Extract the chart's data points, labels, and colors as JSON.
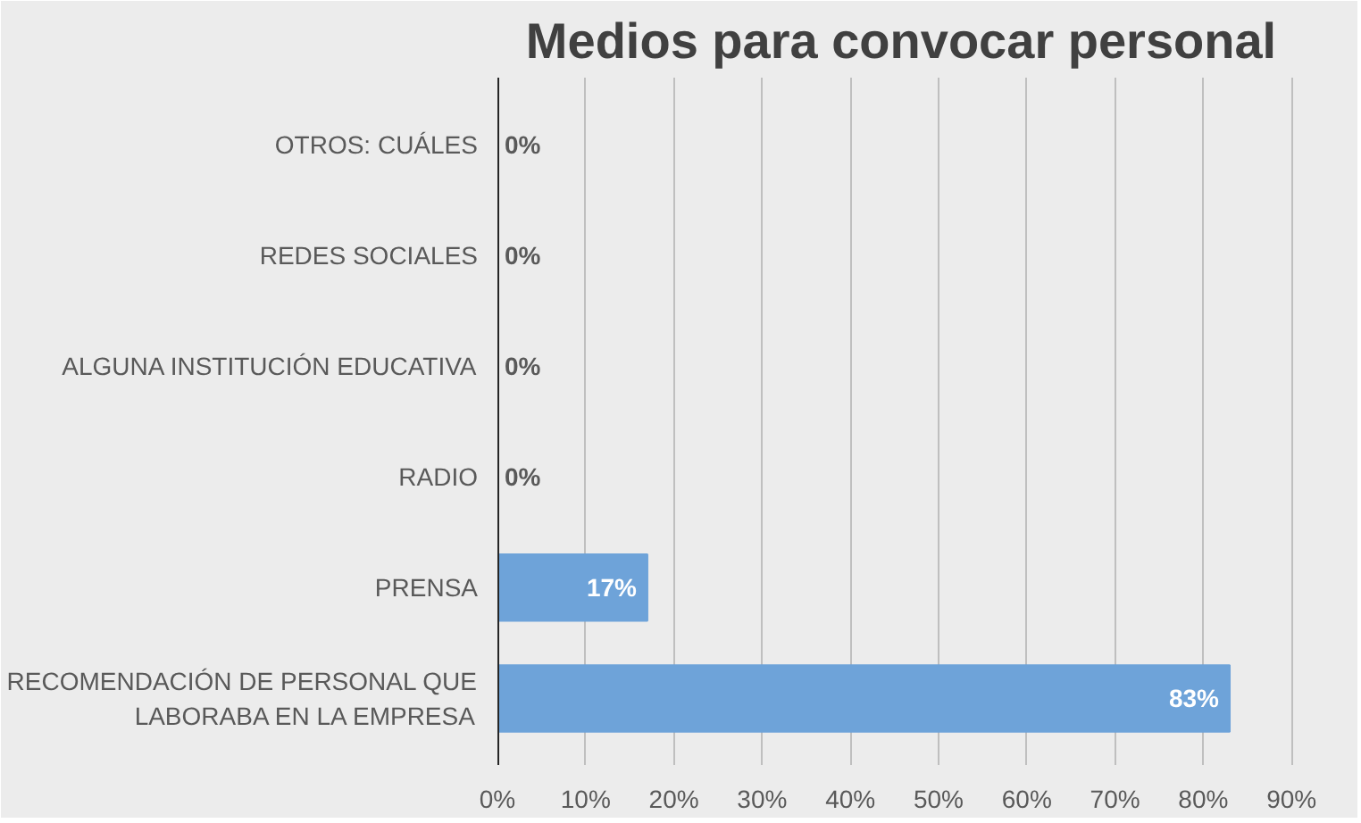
{
  "chart_data": {
    "type": "bar",
    "orientation": "horizontal",
    "title": "Medios para convocar personal",
    "categories": [
      "OTROS: CUÁLES",
      "REDES SOCIALES",
      "ALGUNA INSTITUCIÓN EDUCATIVA",
      "RADIO",
      "PRENSA",
      "RECOMENDACIÓN DE PERSONAL QUE LABORABA EN LA EMPRESA"
    ],
    "values": [
      0,
      0,
      0,
      0,
      17,
      83
    ],
    "value_labels": [
      "0%",
      "0%",
      "0%",
      "0%",
      "17%",
      "83%"
    ],
    "color": "#6ea3d9",
    "xlim": [
      0,
      90
    ],
    "xticks": [
      {
        "value": 0,
        "label": "0%"
      },
      {
        "value": 10,
        "label": "10%"
      },
      {
        "value": 20,
        "label": "20%"
      },
      {
        "value": 30,
        "label": "30%"
      },
      {
        "value": 40,
        "label": "40%"
      },
      {
        "value": 50,
        "label": "50%"
      },
      {
        "value": 60,
        "label": "60%"
      },
      {
        "value": 70,
        "label": "70%"
      },
      {
        "value": 80,
        "label": "80%"
      },
      {
        "value": 90,
        "label": "90%"
      }
    ],
    "grid": "x"
  }
}
